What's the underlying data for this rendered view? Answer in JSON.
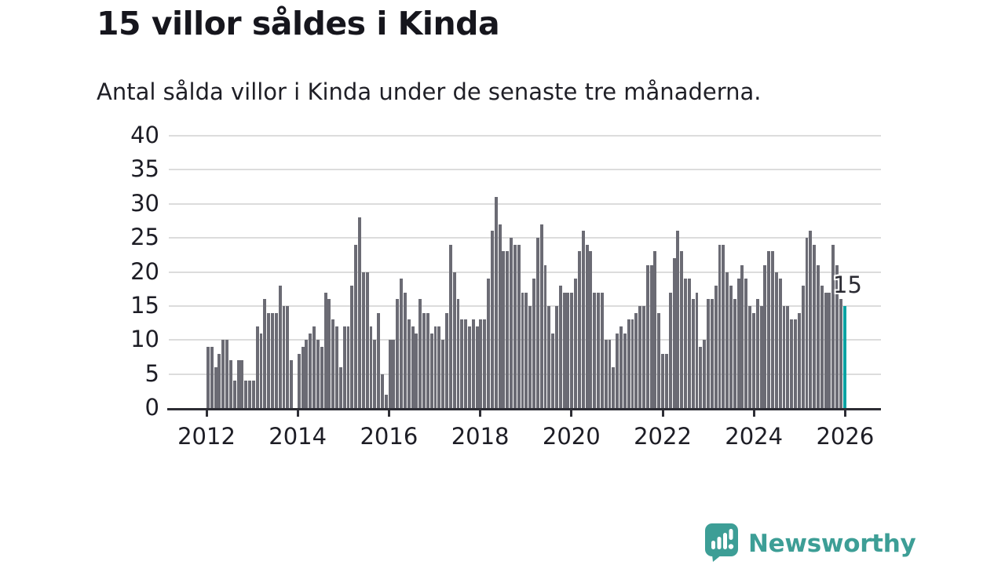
{
  "header": {
    "title": "15 villor såldes i Kinda",
    "subtitle": "Antal sålda villor i Kinda under de senaste tre månaderna."
  },
  "chart_data": {
    "type": "bar",
    "title": "15 villor såldes i Kinda",
    "subtitle": "Antal sålda villor i Kinda under de senaste tre månaderna.",
    "x_start": "2012-01",
    "x_frequency": "monthly",
    "x_tick_labels": [
      "2012",
      "2014",
      "2016",
      "2018",
      "2020",
      "2022",
      "2024",
      "2026"
    ],
    "y_tick_labels": [
      "0",
      "5",
      "10",
      "15",
      "20",
      "25",
      "30",
      "35",
      "40"
    ],
    "ylim": [
      0,
      40
    ],
    "grid": "horizontal",
    "bar_color": "#6b6b74",
    "highlight_color": "#0aa2a2",
    "values": [
      9,
      9,
      6,
      8,
      10,
      10,
      7,
      4,
      7,
      7,
      4,
      4,
      4,
      12,
      11,
      16,
      14,
      14,
      14,
      18,
      15,
      15,
      7,
      0,
      8,
      9,
      10,
      11,
      12,
      10,
      9,
      17,
      16,
      13,
      12,
      6,
      12,
      12,
      18,
      24,
      28,
      20,
      20,
      12,
      10,
      14,
      5,
      2,
      10,
      10,
      16,
      19,
      17,
      13,
      12,
      11,
      16,
      14,
      14,
      11,
      12,
      12,
      10,
      14,
      24,
      20,
      16,
      13,
      13,
      12,
      13,
      12,
      13,
      13,
      19,
      26,
      31,
      27,
      23,
      23,
      25,
      24,
      24,
      17,
      17,
      15,
      19,
      25,
      27,
      21,
      15,
      11,
      15,
      18,
      17,
      17,
      17,
      19,
      23,
      26,
      24,
      23,
      17,
      17,
      17,
      10,
      10,
      6,
      11,
      12,
      11,
      13,
      13,
      14,
      15,
      15,
      21,
      21,
      23,
      14,
      8,
      8,
      17,
      22,
      26,
      23,
      19,
      19,
      16,
      17,
      9,
      10,
      16,
      16,
      18,
      24,
      24,
      20,
      18,
      16,
      19,
      21,
      19,
      15,
      14,
      16,
      15,
      21,
      23,
      23,
      20,
      19,
      15,
      15,
      13,
      13,
      14,
      18,
      25,
      26,
      24,
      21,
      18,
      17,
      17,
      24,
      21,
      16,
      15
    ],
    "highlight_last": true,
    "annotation": {
      "text": "15"
    }
  },
  "footer": {
    "brand": "Newsworthy",
    "logo_color": "#3d9e96"
  }
}
